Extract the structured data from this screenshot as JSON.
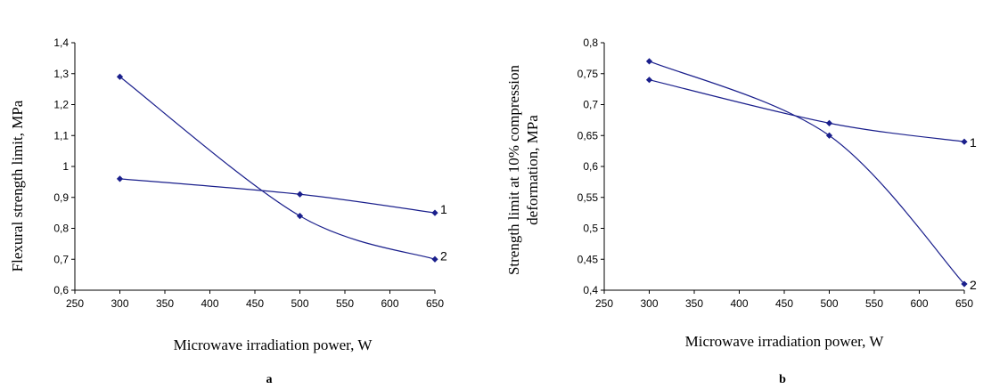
{
  "chart_data": [
    {
      "type": "line",
      "panel_label": "a",
      "xlabel": "Microwave irradiation power, W",
      "ylabel": "Flexural strength limit, MPa",
      "xlim": [
        250,
        650
      ],
      "ylim": [
        0.6,
        1.4
      ],
      "x_ticks": [
        "250",
        "300",
        "350",
        "400",
        "450",
        "500",
        "550",
        "600",
        "650"
      ],
      "y_ticks": [
        "0,6",
        "0,7",
        "0,8",
        "0,9",
        "1",
        "1,1",
        "1,2",
        "1,3",
        "1,4"
      ],
      "grid": false,
      "series": [
        {
          "name": "1",
          "x": [
            300,
            500,
            650
          ],
          "y": [
            0.96,
            0.91,
            0.85
          ]
        },
        {
          "name": "2",
          "x": [
            300,
            500,
            650
          ],
          "y": [
            1.29,
            0.84,
            0.7
          ]
        }
      ]
    },
    {
      "type": "line",
      "panel_label": "b",
      "xlabel": "Microwave irradiation power, W",
      "ylabel_lines": [
        "Strength limit at 10% compression",
        "deformation, MPa"
      ],
      "xlim": [
        250,
        650
      ],
      "ylim": [
        0.4,
        0.8
      ],
      "x_ticks": [
        "250",
        "300",
        "350",
        "400",
        "450",
        "500",
        "550",
        "600",
        "650"
      ],
      "y_ticks": [
        "0,4",
        "0,45",
        "0,5",
        "0,55",
        "0,6",
        "0,65",
        "0,7",
        "0,75",
        "0,8"
      ],
      "grid": false,
      "series": [
        {
          "name": "1",
          "x": [
            300,
            500,
            650
          ],
          "y": [
            0.74,
            0.67,
            0.64
          ]
        },
        {
          "name": "2",
          "x": [
            300,
            500,
            650
          ],
          "y": [
            0.77,
            0.65,
            0.41
          ]
        }
      ]
    }
  ],
  "colors": {
    "series": "#1a1f8c",
    "axis": "#000000"
  }
}
